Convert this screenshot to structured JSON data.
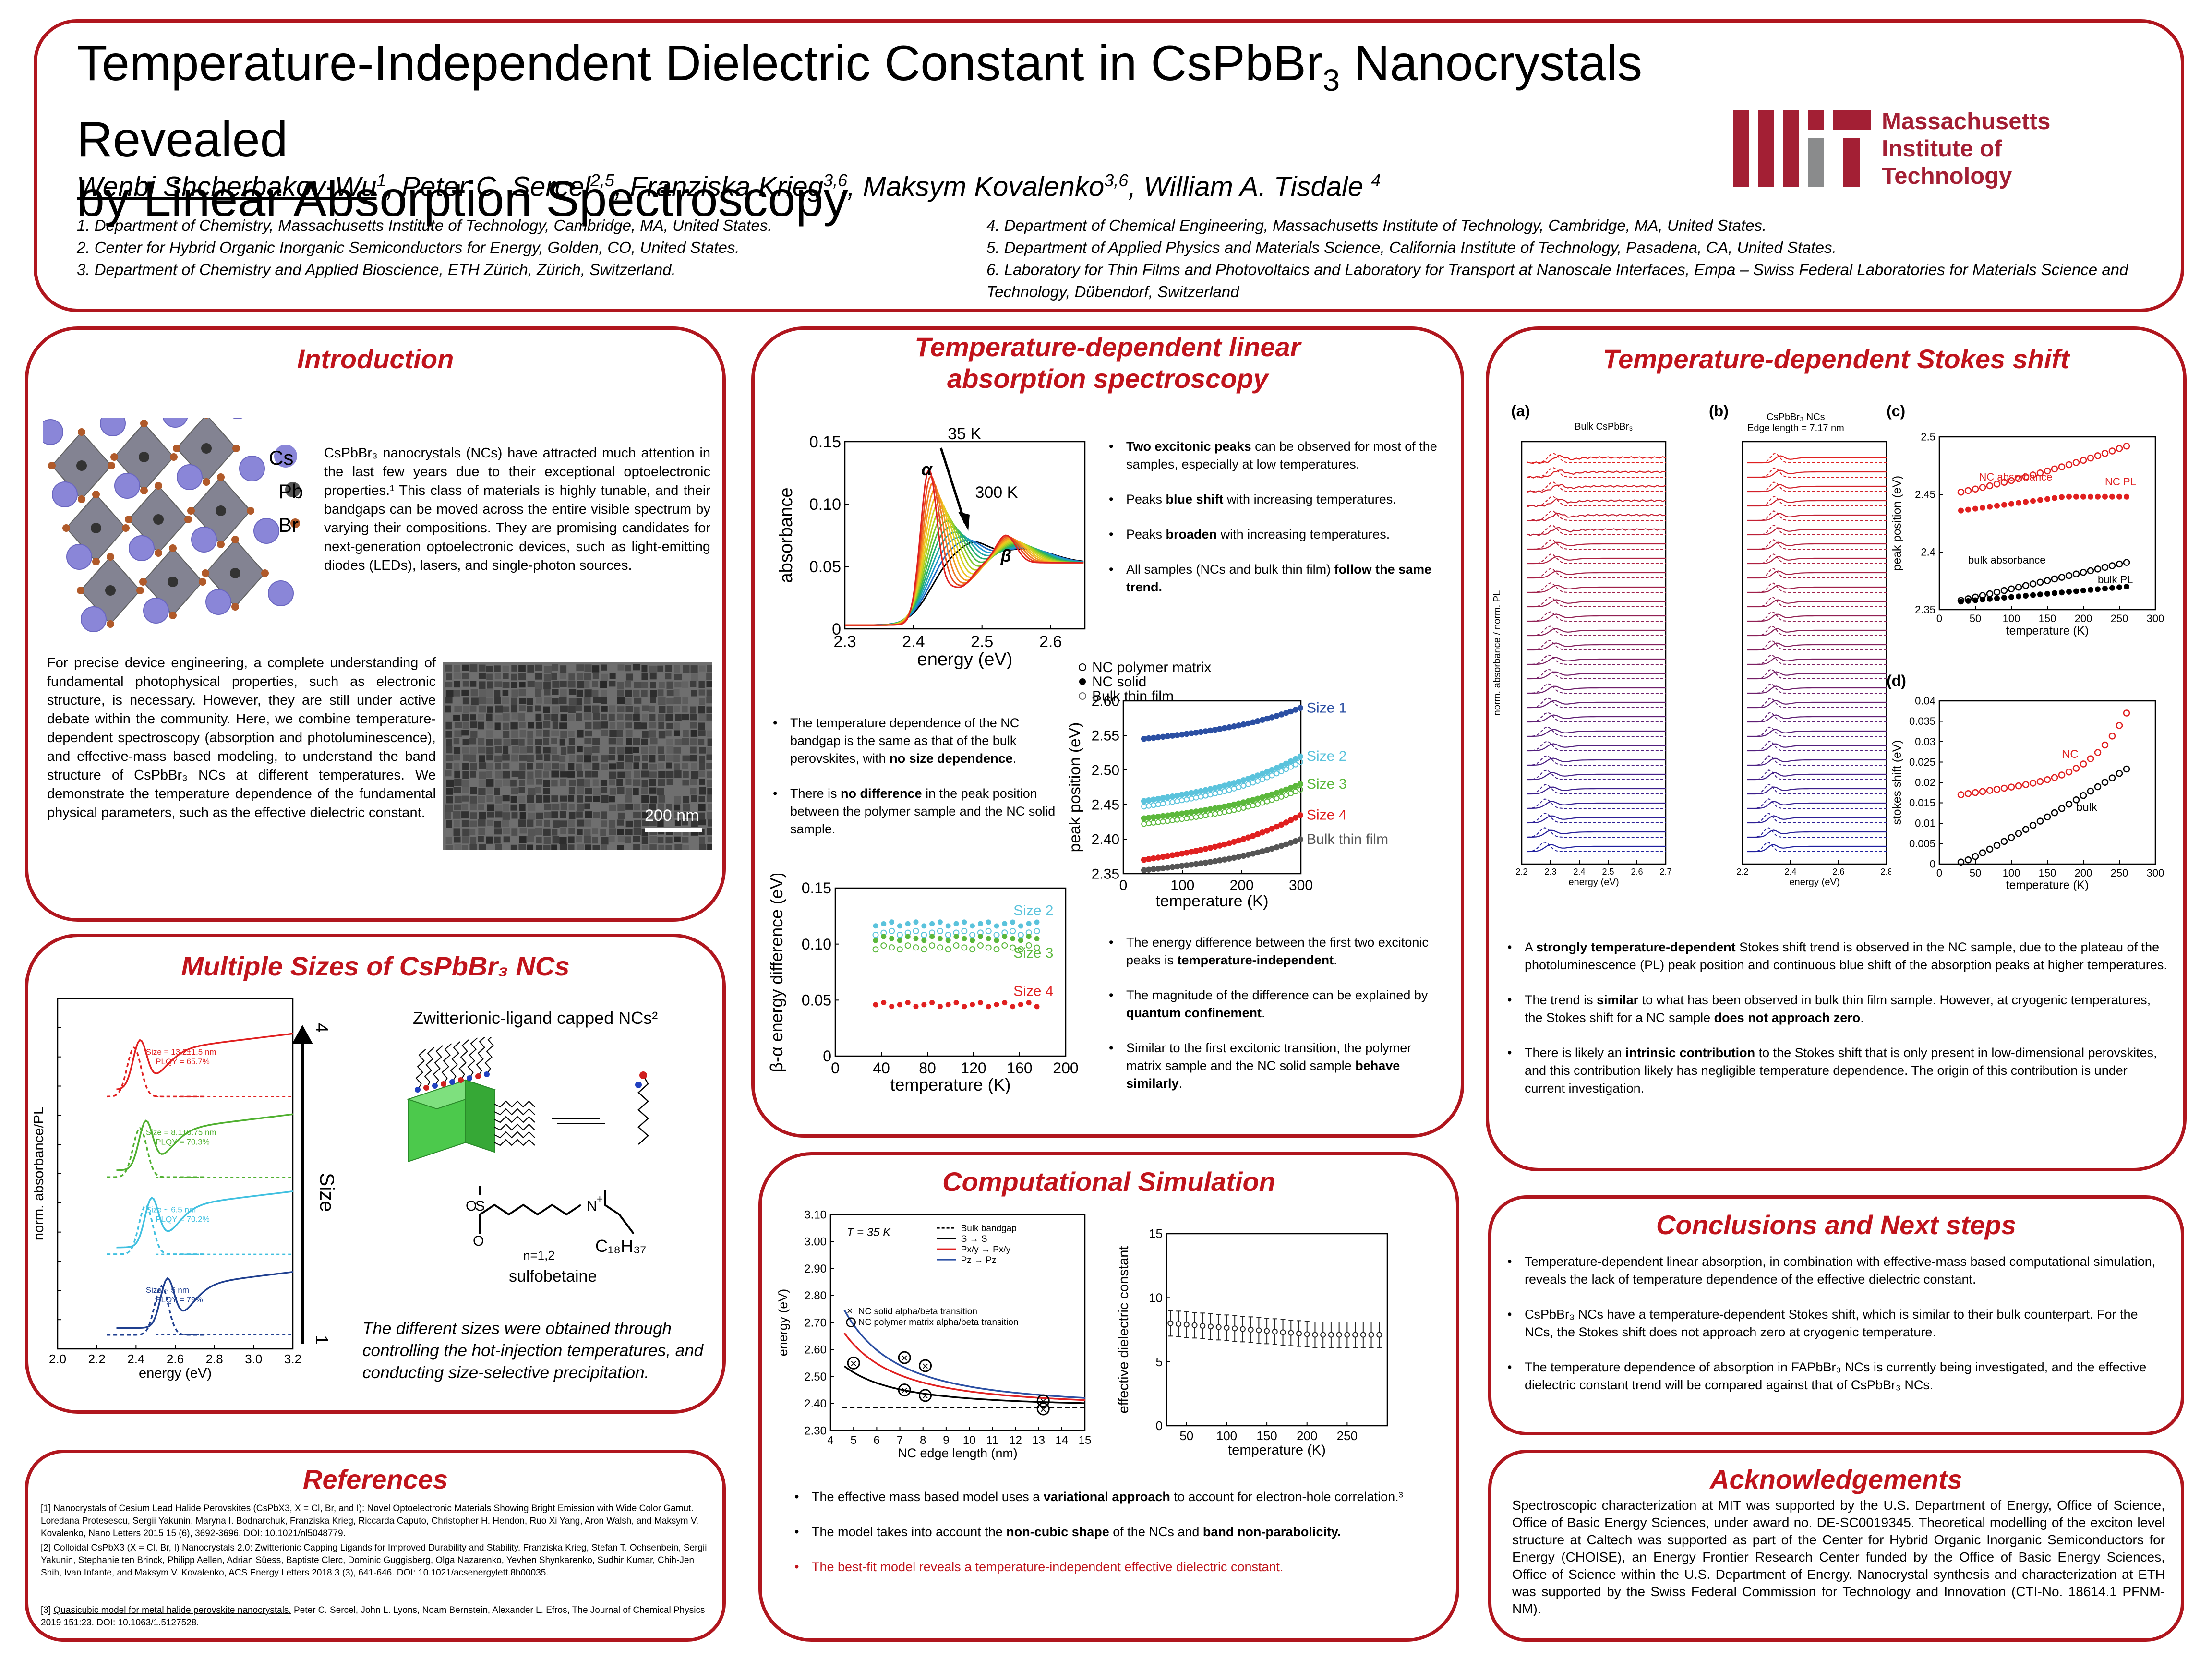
{
  "header": {
    "title_line1_a": "Temperature-Independent Dielectric Constant in CsPbBr",
    "title_line1_sub": "3",
    "title_line1_b": " Nanocrystals Revealed",
    "title_line2": "by Linear Absorption Spectroscopy",
    "authors": [
      {
        "name": "Wenbi Shcherbakov-Wu",
        "sup": "1",
        "sep": ", "
      },
      {
        "name": "Peter C. Sercel",
        "sup": "2,5",
        "sep": ", "
      },
      {
        "name": "Franziska Krieg",
        "sup": "3,6",
        "sep": ", "
      },
      {
        "name": "Maksym Kovalenko",
        "sup": "3,6",
        "sep": ", "
      },
      {
        "name": "William A. Tisdale ",
        "sup": "4",
        "sep": ""
      }
    ],
    "affil_left": [
      "1. Department of Chemistry, Massachusetts Institute of Technology, Cambridge, MA, United States.",
      "2. Center for Hybrid Organic Inorganic Semiconductors for Energy, Golden, CO, United States.",
      "3. Department of Chemistry and Applied Bioscience, ETH Zürich, Zürich, Switzerland."
    ],
    "affil_right": [
      "4. Department of Chemical Engineering, Massachusetts Institute of Technology, Cambridge, MA, United States.",
      "5. Department of Applied Physics and Materials Science, California Institute of Technology, Pasadena, CA, United States.",
      "6. Laboratory for Thin Films and Photovoltaics and Laboratory for Transport at Nanoscale Interfaces, Empa – Swiss Federal Laboratories for Materials Science and Technology, Dübendorf, Switzerland"
    ],
    "logo_text": [
      "Massachusetts",
      "Institute of",
      "Technology"
    ],
    "brand_color": "#a31f34"
  },
  "intro": {
    "title": "Introduction",
    "crystal_labels": [
      "Cs",
      "Pb",
      "Br"
    ],
    "p1": "CsPbBr₃ nanocrystals (NCs) have attracted much attention in the last few years due to their exceptional optoelectronic properties.¹ This class of materials is highly tunable, and their bandgaps can be moved across the entire visible spectrum by varying their compositions. They are promising candidates for next-generation optoelectronic devices, such as light-emitting diodes (LEDs), lasers, and single-photon sources.",
    "p2": "For precise device engineering, a complete understanding of fundamental photophysical properties, such as electronic structure, is necessary. However, they are still under active debate within the community. Here, we combine temperature-dependent spectroscopy (absorption and photoluminescence), and effective-mass based modeling, to understand the band structure of CsPbBr₃ NCs at different temperatures. We demonstrate the temperature dependence of the fundamental physical parameters, such as the effective dielectric constant.",
    "scale_bar": "200 nm"
  },
  "sizes": {
    "title": "Multiple Sizes of CsPbBr₃ NCs",
    "ylabel": "norm. absorbance/PL",
    "xlabel": "energy (eV)",
    "xticks": [
      "2.0",
      "2.2",
      "2.4",
      "2.6",
      "2.8",
      "3.0",
      "3.2"
    ],
    "size_labels": [
      {
        "l1": "Size = 13.2±1.5 nm",
        "l2": "PLQY = 65.7%"
      },
      {
        "l1": "Size = 8.1±0.75 nm",
        "l2": "PLQY = 70.3%"
      },
      {
        "l1": "Size ~ 6.5 nm",
        "l2": "PLQY = 70.2%"
      },
      {
        "l1": "Size ~ 5 nm",
        "l2": "PLQY = 79%"
      }
    ],
    "arrow_top": "4",
    "arrow_bottom": "1",
    "arrow_label": "Size",
    "ligand_title": "Zwitterionic-ligand capped NCs²",
    "chem_n": "n=1,2",
    "chem_c18": "C₁₈H₃₇",
    "chem_name": "sulfobetaine",
    "caption": "The different sizes were obtained through controlling the hot-injection temperatures, and conducting size-selective precipitation."
  },
  "refs": {
    "title": "References",
    "items": [
      {
        "tag": "[1] ",
        "link": "Nanocrystals of Cesium Lead Halide Perovskites (CsPbX3, X = Cl, Br, and I): Novel Optoelectronic Materials Showing Bright Emission with Wide Color Gamut.",
        "rest": " Loredana Protesescu, Sergii Yakunin, Maryna I. Bodnarchuk, Franziska Krieg, Riccarda Caputo, Christopher H. Hendon, Ruo Xi Yang, Aron Walsh, and Maksym V. Kovalenko, Nano Letters 2015 15 (6), 3692-3696. DOI: 10.1021/nl5048779."
      },
      {
        "tag": "[2] ",
        "link": "Colloidal CsPbX3 (X = Cl, Br, I) Nanocrystals 2.0: Zwitterionic Capping Ligands for Improved Durability and Stability.",
        "rest": " Franziska Krieg, Stefan T. Ochsenbein, Sergii Yakunin, Stephanie ten Brinck, Philipp Aellen, Adrian Süess, Baptiste Clerc, Dominic Guggisberg, Olga Nazarenko, Yevhen Shynkarenko, Sudhir Kumar, Chih-Jen Shih, Ivan Infante, and Maksym V. Kovalenko, ACS Energy Letters 2018 3 (3), 641-646. DOI: 10.1021/acsenergylett.8b00035."
      },
      {
        "tag": "[3] ",
        "link": "Quasicubic model for metal halide perovskite nanocrystals.",
        "rest": " Peter C. Sercel, John L. Lyons, Noam Bernstein, Alexander L. Efros, The Journal of Chemical Physics 2019 151:23. DOI: 10.1063/1.5127528."
      }
    ]
  },
  "absorption": {
    "title1": "Temperature-dependent linear",
    "title2": "absorption spectroscopy",
    "spec_label_35": "35 K",
    "spec_label_300": "300 K",
    "alpha": "α",
    "beta": "β",
    "spec_ylabel": "absorbance",
    "spec_xlabel": "energy (eV)",
    "bullets_top": [
      {
        "b": "Two excitonic peaks",
        "t": " can be observed for most of the samples, especially at low temperatures."
      },
      {
        "b": "",
        "t": "Peaks ",
        "b2": "blue shift",
        "t2": " with increasing temperatures."
      },
      {
        "b": "",
        "t": "Peaks ",
        "b2": "broaden",
        "t2": " with increasing temperatures."
      },
      {
        "b": "",
        "t": "All samples (NCs and bulk thin film) ",
        "b2": "follow the same trend.",
        "t2": ""
      }
    ],
    "bullets_mid": [
      {
        "t": "The temperature dependence of the NC bandgap is the same as that of the bulk perovskites, with ",
        "b": "no size dependence",
        "t2": "."
      },
      {
        "t": "There is ",
        "b": "no difference",
        "t2": " in the peak position between the polymer sample and the NC solid sample."
      }
    ],
    "bullets_bot": [
      {
        "t": "The energy difference between the first two excitonic peaks is ",
        "b": "temperature-independent",
        "t2": "."
      },
      {
        "t": "The magnitude of the difference can be explained by ",
        "b": "quantum confinement",
        "t2": "."
      },
      {
        "t": "Similar to the first excitonic transition, the polymer matrix sample and the NC solid sample ",
        "b": "behave similarly",
        "t2": "."
      }
    ],
    "peak_legend": [
      "NC polymer matrix",
      "NC solid",
      "Bulk thin film"
    ],
    "peak_ylabel": "peak position (eV)",
    "peak_xlabel": "temperature (K)",
    "peak_series_labels": [
      "Size 1",
      "Size 2",
      "Size 3",
      "Size 4",
      "Bulk thin film"
    ],
    "diff_ylabel": "β-α energy difference (eV)",
    "diff_xlabel": "temperature (K)",
    "diff_series_labels": [
      "Size 2",
      "Size 3",
      "Size 4"
    ]
  },
  "compsim": {
    "title": "Computational Simulation",
    "temp_label": "T = 35 K",
    "legend": [
      "Bulk bandgap",
      "S → S",
      "Px/y → Px/y",
      "Pz → Pz",
      "NC solid alpha/beta transition",
      "NC polymer matrix alpha/beta transition"
    ],
    "energy_ylabel": "energy (eV)",
    "energy_xlabel": "NC edge length (nm)",
    "diel_ylabel": "effective dielectric constant",
    "diel_xlabel": "temperature (K)",
    "bullets": [
      {
        "t": "The effective mass based model uses a ",
        "b": "variational approach",
        "t2": " to account for electron-hole correlation.³"
      },
      {
        "t": "The model takes into account the ",
        "b": "non-cubic shape",
        "t2": " of the NCs and ",
        "b2": "band non-parabolicity."
      }
    ],
    "bullet_red": "The best-fit model reveals a temperature-independent effective dielectric constant."
  },
  "stokes": {
    "title": "Temperature-dependent Stokes shift",
    "panel_a": "(a)",
    "panel_b": "(b)",
    "panel_c": "(c)",
    "panel_d": "(d)",
    "bulk_title": "Bulk CsPbBr₃",
    "nc_title1": "CsPbBr₃ NCs",
    "nc_title2": "Edge length = 7.17 nm",
    "ab_ylabel": "norm. absorbance / norm. PL",
    "ab_xlabel": "energy (eV)",
    "c_ylabel": "peak position (eV)",
    "c_xlabel": "temperature (K)",
    "c_labels": [
      "NC absorbance",
      "NC PL",
      "bulk absorbance",
      "bulk PL"
    ],
    "d_ylabel": "stokes shift (eV)",
    "d_xlabel": "temperature (K)",
    "d_labels": [
      "NC",
      "bulk"
    ],
    "bullets": [
      {
        "t": "A ",
        "b": "strongly temperature-dependent",
        "t2": " Stokes shift trend is observed in the NC sample, due to the plateau of the photoluminescence (PL) peak position and continuous blue shift of the absorption peaks at higher temperatures."
      },
      {
        "t": "The trend is ",
        "b": "similar",
        "t2": " to what has been observed in bulk thin film sample. However, at cryogenic temperatures, the Stokes shift for a NC sample ",
        "b2": "does not approach zero",
        "t3": "."
      },
      {
        "t": "There is likely an ",
        "b": "intrinsic contribution",
        "t2": " to the Stokes shift that is only present in low-dimensional perovskites, and this contribution likely has negligible temperature dependence. The origin of this contribution is under current investigation."
      }
    ]
  },
  "conclusions": {
    "title": "Conclusions and Next steps",
    "bullets": [
      "Temperature-dependent linear absorption, in combination with effective-mass based computational simulation, reveals the lack of temperature dependence of the effective dielectric constant.",
      "CsPbBr₃ NCs have a temperature-dependent Stokes shift, which is similar to their bulk counterpart. For the NCs, the Stokes shift does not approach zero at cryogenic temperature.",
      "The temperature dependence of absorption in FAPbBr₃ NCs is currently being investigated, and the effective dielectric constant trend will be compared against that of CsPbBr₃ NCs."
    ]
  },
  "ack": {
    "title": "Acknowledgements",
    "text": "Spectroscopic characterization at MIT was supported by the U.S. Department of Energy, Office of Science, Office of Basic Energy Sciences, under award no. DE-SC0019345. Theoretical modelling of the exciton level structure at Caltech was supported as part of the Center for Hybrid Organic Inorganic Semiconductors for Energy (CHOISE), an Energy Frontier Research Center funded by the Office of Basic Energy Sciences, Office of Science within the U.S. Department of Energy. Nanocrystal synthesis and characterization at ETH was supported by the Swiss Federal Commission for Technology and Innovation (CTI-No. 18614.1 PFNM-NM)."
  },
  "chart_data": [
    {
      "type": "line",
      "xlabel": "energy (eV)",
      "ylabel": "absorbance",
      "xlim": [
        2.3,
        2.65
      ],
      "ylim": [
        0,
        0.15
      ],
      "xticks": [
        2.3,
        2.4,
        2.5,
        2.6
      ],
      "yticks": [
        0,
        0.05,
        0.1,
        0.15
      ],
      "temperature_range_K": [
        35,
        300
      ],
      "series_count": 14
    },
    {
      "type": "scatter",
      "xlabel": "temperature (K)",
      "ylabel": "peak position (eV)",
      "xlim": [
        0,
        300
      ],
      "ylim": [
        2.35,
        2.6
      ],
      "xticks": [
        0,
        100,
        200,
        300
      ],
      "yticks": [
        2.35,
        2.4,
        2.45,
        2.5,
        2.55,
        2.6
      ],
      "series": [
        {
          "name": "Size 1",
          "color": "#2b4fa3",
          "y0": 2.545,
          "y1": 2.59
        },
        {
          "name": "Size 2",
          "color": "#5bc3dc",
          "y0": 2.455,
          "y1": 2.52
        },
        {
          "name": "Size 3",
          "color": "#5cb83c",
          "y0": 2.43,
          "y1": 2.48
        },
        {
          "name": "Size 4",
          "color": "#e02020",
          "y0": 2.37,
          "y1": 2.435
        },
        {
          "name": "Bulk thin film",
          "color": "#555555",
          "y0": 2.355,
          "y1": 2.4
        }
      ]
    },
    {
      "type": "scatter",
      "xlabel": "temperature (K)",
      "ylabel": "β-α energy difference (eV)",
      "xlim": [
        0,
        200
      ],
      "ylim": [
        0,
        0.15
      ],
      "xticks": [
        0,
        40,
        80,
        120,
        160,
        200
      ],
      "yticks": [
        0,
        0.05,
        0.1,
        0.15
      ],
      "series": [
        {
          "name": "Size 2",
          "color": "#5bc3dc",
          "value": 0.118
        },
        {
          "name": "Size 3",
          "color": "#5cb83c",
          "value": 0.105
        },
        {
          "name": "Size 4",
          "color": "#e02020",
          "value": 0.046
        }
      ]
    },
    {
      "type": "line",
      "xlabel": "NC edge length (nm)",
      "ylabel": "energy (eV)",
      "xlim": [
        4,
        15
      ],
      "ylim": [
        2.3,
        3.1
      ],
      "xticks": [
        4,
        5,
        6,
        7,
        8,
        9,
        10,
        11,
        12,
        13,
        14,
        15
      ],
      "yticks": [
        2.3,
        2.4,
        2.5,
        2.6,
        2.7,
        2.8,
        2.9,
        3.0,
        3.1
      ],
      "bulk_bandgap": 2.385
    },
    {
      "type": "scatter",
      "xlabel": "temperature (K)",
      "ylabel": "effective dielectric constant",
      "xlim": [
        25,
        300
      ],
      "ylim": [
        0,
        15
      ],
      "xticks": [
        50,
        100,
        150,
        200,
        250
      ],
      "yticks": [
        0,
        5,
        10,
        15
      ],
      "value_range": [
        7.1,
        8.0
      ]
    },
    {
      "type": "scatter",
      "xlabel": "temperature (K)",
      "ylabel": "peak position (eV)",
      "xlim": [
        0,
        300
      ],
      "ylim": [
        2.35,
        2.5
      ],
      "xticks": [
        0,
        50,
        100,
        150,
        200,
        250,
        300
      ],
      "yticks": [
        2.35,
        2.4,
        2.45,
        2.5
      ]
    },
    {
      "type": "scatter",
      "xlabel": "temperature (K)",
      "ylabel": "stokes shift (eV)",
      "xlim": [
        0,
        300
      ],
      "ylim": [
        0,
        0.04
      ],
      "xticks": [
        0,
        50,
        100,
        150,
        200,
        250,
        300
      ],
      "yticks": [
        0,
        0.005,
        0.01,
        0.015,
        0.02,
        0.025,
        0.03,
        0.035,
        0.04
      ]
    }
  ]
}
